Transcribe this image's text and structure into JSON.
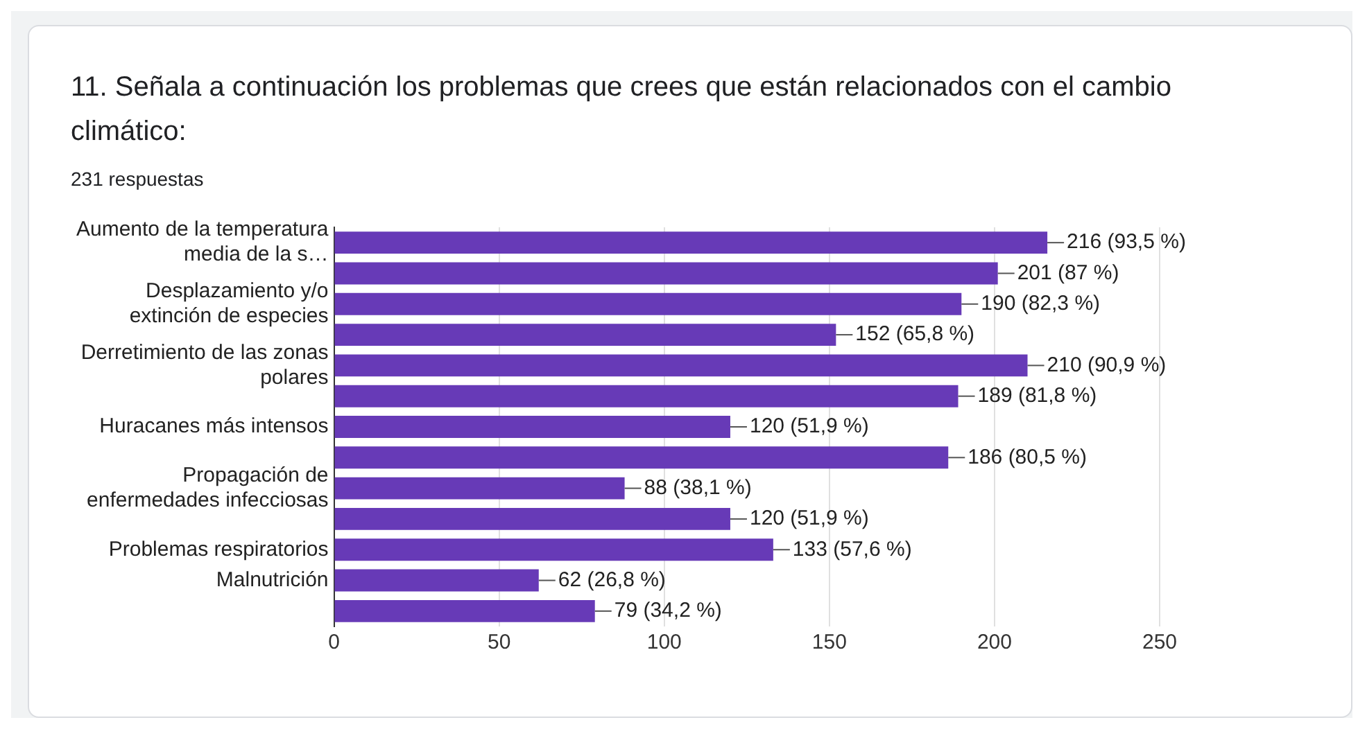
{
  "chart_data": {
    "type": "bar",
    "orientation": "horizontal",
    "title": "11. Señala a continuación los problemas que crees que están relacionados con el cambio climático:",
    "subtitle": "231 respuestas",
    "categories": [
      "Aumento de la temperatura media de la s…",
      null,
      "Desplazamiento y/o extinción de especies",
      null,
      "Derretimiento de las zonas polares",
      null,
      "Huracanes más intensos",
      null,
      "Propagación de enfermedades infecciosas",
      null,
      "Problemas respiratorios",
      "Malnutrición",
      null
    ],
    "values": [
      216,
      201,
      190,
      152,
      210,
      189,
      120,
      186,
      88,
      120,
      133,
      62,
      79
    ],
    "value_labels": [
      "216 (93,5 %)",
      "201 (87 %)",
      "190 (82,3 %)",
      "152 (65,8 %)",
      "210 (90,9 %)",
      "189 (81,8 %)",
      "120 (51,9 %)",
      "186 (80,5 %)",
      "88 (38,1 %)",
      "120 (51,9 %)",
      "133 (57,6 %)",
      "62 (26,8 %)",
      "79 (34,2 %)"
    ],
    "color": "#673ab7",
    "xlim": [
      0,
      250
    ],
    "xticks": [
      0,
      50,
      100,
      150,
      200,
      250
    ],
    "grid": "x",
    "legend": false
  }
}
